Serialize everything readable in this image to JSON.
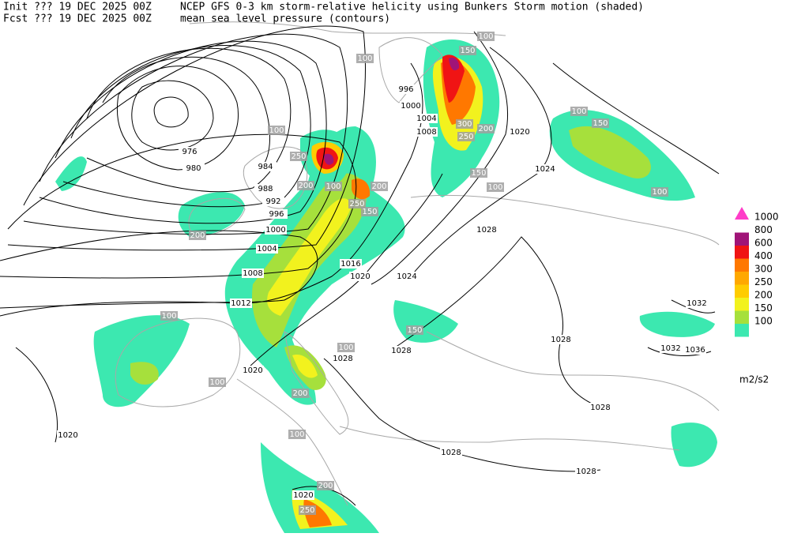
{
  "header": {
    "init": "Init  ??? 19 DEC 2025 00Z",
    "fcst": "Fcst ??? 19 DEC 2025 00Z",
    "title1": "NCEP GFS 0-3 km storm-relative helicity using Bunkers Storm motion (shaded)",
    "title2": "mean sea level pressure (contours)"
  },
  "legend": {
    "levels": [
      {
        "label": "100",
        "color": "#3ce8b0"
      },
      {
        "label": "150",
        "color": "#a6e03c"
      },
      {
        "label": "200",
        "color": "#f2f21e"
      },
      {
        "label": "250",
        "color": "#ffcc00"
      },
      {
        "label": "300",
        "color": "#ffa800"
      },
      {
        "label": "400",
        "color": "#ff7800"
      },
      {
        "label": "600",
        "color": "#f01414"
      },
      {
        "label": "800",
        "color": "#a01478"
      },
      {
        "label": "1000",
        "color": "#ff3cc8"
      }
    ],
    "unit": "m2/s2"
  },
  "isobar_labels": [
    "976",
    "980",
    "984",
    "988",
    "992",
    "996",
    "1000",
    "1004",
    "1008",
    "1012",
    "1016",
    "1020",
    "1024",
    "996",
    "1000",
    "1004",
    "1008",
    "1020",
    "1024",
    "1028",
    "1028",
    "1032",
    "1032",
    "1036",
    "1028",
    "1028",
    "1020",
    "1020",
    "1028",
    "1028",
    "1028",
    "1020"
  ],
  "helicity_labels": [
    "250",
    "200",
    "100",
    "200",
    "250",
    "150",
    "100",
    "200",
    "300",
    "200",
    "250",
    "150",
    "100",
    "100",
    "150",
    "100",
    "100",
    "100",
    "150",
    "150",
    "100",
    "200",
    "250",
    "200",
    "100",
    "100",
    "100"
  ]
}
